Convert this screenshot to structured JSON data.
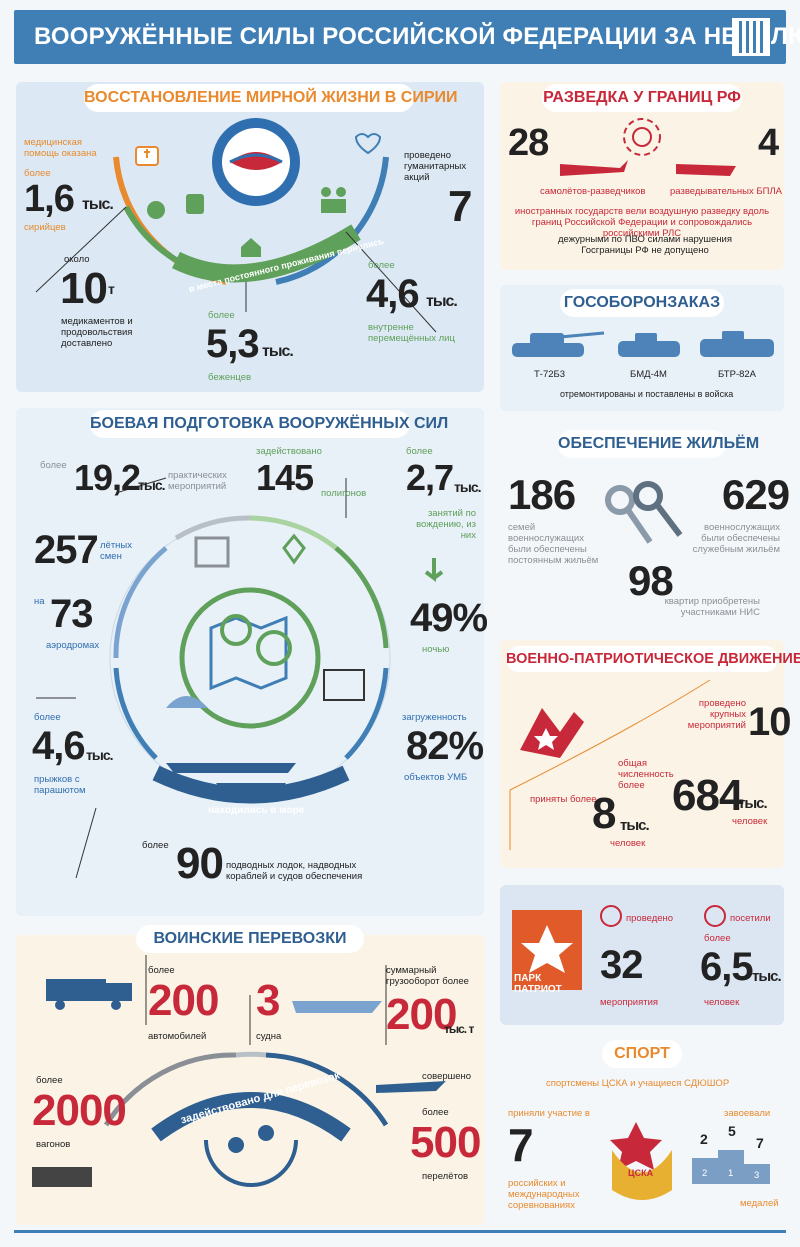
{
  "header": {
    "title": "ВООРУЖЁННЫЕ СИЛЫ РОССИЙСКОЙ ФЕДЕРАЦИИ ЗА НЕДЕЛЮ"
  },
  "syria": {
    "title": "ВОССТАНОВЛЕНИЕ МИРНОЙ ЖИЗНИ В СИРИИ",
    "med_label": "медицинская помощь оказана",
    "med_more": "более",
    "med_value": "1,6",
    "med_unit": "тыс.",
    "med_who": "сирийцев",
    "med_approx": "около",
    "med_tons": "10",
    "med_t": "т",
    "med_desc": "медикаментов и продовольствия доставлено",
    "hum_label": "проведено гуманитарных акций",
    "hum_value": "7",
    "return_label": "в места постоянного проживания вернулись",
    "idp_more": "более",
    "idp_value": "4,6",
    "idp_unit": "тыс.",
    "idp_desc": "внутренне перемещённых лиц",
    "ref_more": "более",
    "ref_value": "5,3",
    "ref_unit": "тыс.",
    "ref_desc": "беженцев"
  },
  "recon": {
    "title": "РАЗВЕДКА У ГРАНИЦ РФ",
    "planes": "28",
    "planes_label": "самолётов-разведчиков",
    "uav": "4",
    "uav_label": "разведывательных БПЛА",
    "desc": "иностранных государств вели воздушную разведку вдоль границ Российской Федерации и сопровождались российскими РЛС",
    "desc2": "дежурными по ПВО силами нарушения Госграницы РФ не допущено"
  },
  "gsz": {
    "title": "ГОСОБОРОНЗАКАЗ",
    "items": [
      "Т-72Б3",
      "БМД-4М",
      "БТР-82А"
    ],
    "desc": "отремонтированы и поставлены в войска"
  },
  "housing": {
    "title": "ОБЕСПЕЧЕНИЕ ЖИЛЬЁМ",
    "v1": "186",
    "d1": "семей военнослужащих были обеспечены постоянным жильём",
    "v2": "629",
    "d2": "военнослужащих были обеспечены служебным жильём",
    "v3": "98",
    "d3": "квартир приобретены участниками НИС"
  },
  "patriot": {
    "title": "ВОЕННО-ПАТРИОТИЧЕСКОЕ ДВИЖЕНИЕ",
    "events_label": "проведено крупных мероприятий",
    "events": "10",
    "total_label": "общая численность более",
    "total": "684",
    "total_unit": "тыс.",
    "total_who": "человек",
    "accepted_label": "приняты более",
    "accepted": "8",
    "accepted_unit": "тыс.",
    "accepted_who": "человек"
  },
  "park": {
    "logo": "ПАРК ПАТРИОТ",
    "held_label": "проведено",
    "held": "32",
    "held_desc": "мероприятия",
    "visit_label": "посетили",
    "visit_more": "более",
    "visit": "6,5",
    "visit_unit": "тыс.",
    "visit_desc": "человек"
  },
  "sport": {
    "title": "СПОРТ",
    "subtitle": "спортсмены ЦСКА и учащиеся СДЮШОР",
    "part_label": "приняли участие в",
    "part": "7",
    "part_desc": "российских и международных соревнованиях",
    "won_label": "завоевали",
    "won_desc": "медалей",
    "podium": [
      "2",
      "5",
      "7"
    ],
    "podium_steps": [
      "2",
      "1",
      "3"
    ],
    "badge": "ЦСКА"
  },
  "training": {
    "title": "БОЕВАЯ ПОДГОТОВКА ВООРУЖЁННЫХ СИЛ",
    "ev_more": "более",
    "ev": "19,2",
    "ev_unit": "тыс.",
    "ev_desc": "практических мероприятий",
    "ranges_label": "задействовано",
    "ranges": "145",
    "ranges_desc": "полигонов",
    "drive_more": "более",
    "drive": "2,7",
    "drive_unit": "тыс.",
    "drive_desc": "занятий по вождению, из них",
    "shifts": "257",
    "shifts_desc": "лётных смен",
    "air_on": "на",
    "air": "73",
    "air_desc": "аэродромах",
    "night": "49%",
    "night_desc": "ночью",
    "jump_more": "более",
    "jump": "4,6",
    "jump_unit": "тыс.",
    "jump_desc": "прыжков с парашютом",
    "umb_label": "загруженность",
    "umb": "82%",
    "umb_desc": "объектов УМБ",
    "sea_label": "находились в море",
    "ships_more": "более",
    "ships": "90",
    "ships_desc": "подводных лодок, надводных кораблей и судов обеспечения"
  },
  "transport": {
    "title": "ВОИНСКИЕ ПЕРЕВОЗКИ",
    "cars_more": "более",
    "cars": "200",
    "cars_desc": "автомобилей",
    "ships": "3",
    "ships_desc": "судна",
    "cargo_label": "суммарный грузооборот более",
    "cargo": "200",
    "cargo_unit": "тыс. т",
    "wag_more": "более",
    "wag": "2000",
    "wag_desc": "вагонов",
    "flights_label": "совершено",
    "flights_more": "более",
    "flights": "500",
    "flights_desc": "перелётов",
    "arc_label": "задействовано для перевозок"
  },
  "colors": {
    "blue": "#3f7fb5",
    "orange": "#e88a2d",
    "green": "#5fa05a",
    "red": "#c8293a",
    "gray": "#8a8f95"
  }
}
